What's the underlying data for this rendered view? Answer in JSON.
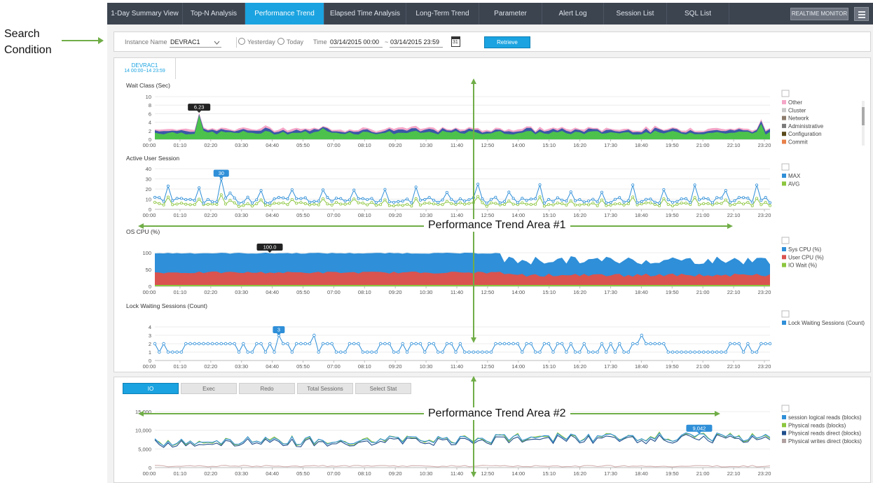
{
  "annotation": {
    "search_condition": "Search Condition",
    "area1": "Performance Trend Area #1",
    "area2": "Performance Trend Area #2",
    "arrow_color": "#70ad47"
  },
  "nav": {
    "tabs": [
      "1-Day Summary View",
      "Top-N Analysis",
      "Performance Trend",
      "Elapsed Time Analysis",
      "Long-Term Trend",
      "Parameter",
      "Alert Log",
      "Session List",
      "SQL List"
    ],
    "active": "Performance Trend",
    "realtime": "REALTIME MONITOR"
  },
  "search": {
    "instance_label": "Instance Name",
    "instance_value": "DEVRAC1",
    "yesterday": "Yesterday",
    "today": "Today",
    "time_label": "Time",
    "time_from": "03/14/2015 00:00",
    "time_sep": "~",
    "time_to": "03/14/2015 23:59",
    "calendar_day": "31",
    "retrieve": "Retrieve"
  },
  "instance_tab": {
    "name": "DEVRAC1",
    "range": "14 00:00~14 23:59"
  },
  "x_ticks": [
    "00:00",
    "01:10",
    "02:20",
    "03:30",
    "04:40",
    "05:50",
    "07:00",
    "08:10",
    "09:20",
    "10:30",
    "11:40",
    "12:50",
    "14:00",
    "15:10",
    "16:20",
    "17:30",
    "18:40",
    "19:50",
    "21:00",
    "22:10",
    "23:20"
  ],
  "charts": [
    {
      "title": "Wait Class (Sec)",
      "y_ticks": [
        "10",
        "8",
        "6",
        "4",
        "2",
        "0"
      ],
      "tooltip": "6.23",
      "legend": [
        {
          "name": "Other",
          "color": "#f4a6c8"
        },
        {
          "name": "Cluster",
          "color": "#c8c8c8"
        },
        {
          "name": "Network",
          "color": "#8c7b6b"
        },
        {
          "name": "Administrative",
          "color": "#7a7a7a"
        },
        {
          "name": "Configuration",
          "color": "#5a4a1a"
        },
        {
          "name": "Commit",
          "color": "#e8804a"
        }
      ]
    },
    {
      "title": "Active User Session",
      "y_ticks": [
        "40",
        "30",
        "20",
        "10",
        "0"
      ],
      "tooltip": "30",
      "legend": [
        {
          "name": "MAX",
          "color": "#2f8fd8"
        },
        {
          "name": "AVG",
          "color": "#8cc63f"
        }
      ]
    },
    {
      "title": "OS CPU (%)",
      "y_ticks": [
        "100",
        "50",
        "0"
      ],
      "tooltip": "100.0",
      "legend": [
        {
          "name": "Sys CPU (%)",
          "color": "#2f8fd8"
        },
        {
          "name": "User CPU (%)",
          "color": "#d9534f"
        },
        {
          "name": "IO Wait (%)",
          "color": "#8cc63f"
        }
      ]
    },
    {
      "title": "Lock Waiting Sessions (Count)",
      "y_ticks": [
        "4",
        "3",
        "2",
        "1",
        "0"
      ],
      "tooltip": "3",
      "legend": [
        {
          "name": "Lock Waiting Sessions (Count)",
          "color": "#2f8fd8"
        }
      ]
    }
  ],
  "io_panel": {
    "tabs": [
      "IO",
      "Exec",
      "Redo",
      "Total Sessions",
      "Select Stat"
    ],
    "active": "IO",
    "y_ticks": [
      "15,000",
      "10,000",
      "5,000",
      "0"
    ],
    "tooltip": "9,042",
    "legend": [
      {
        "name": "session logical reads (blocks)",
        "color": "#2f8fd8"
      },
      {
        "name": "Physical reads (blocks)",
        "color": "#8cc63f"
      },
      {
        "name": "Physical reads direct (blocks)",
        "color": "#1f4e8c"
      },
      {
        "name": "Physical writes direct (blocks)",
        "color": "#b0a0a0"
      }
    ]
  }
}
